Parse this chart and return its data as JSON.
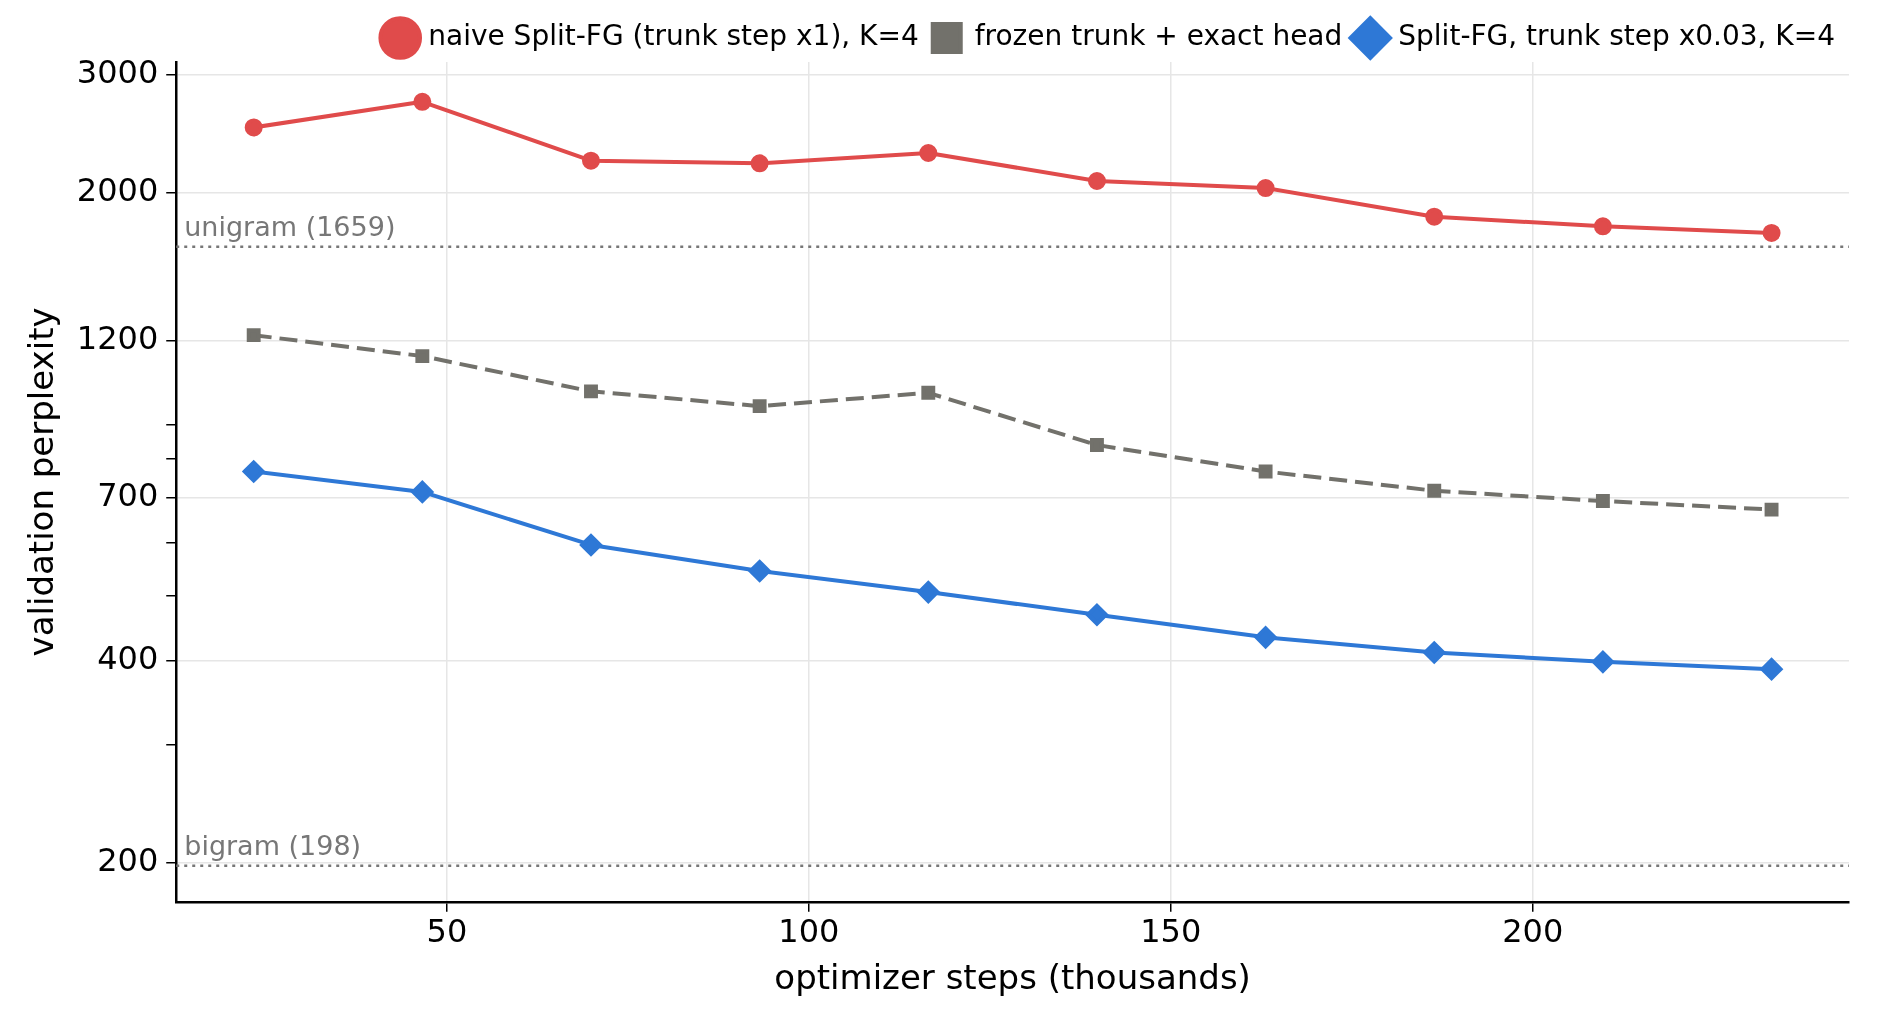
{
  "chart_data": {
    "type": "line",
    "xlabel": "optimizer steps (thousands)",
    "ylabel": "validation perplexity",
    "x": [
      23.3,
      46.6,
      69.9,
      93.2,
      116.5,
      139.8,
      163.1,
      186.4,
      209.7,
      233
    ],
    "series": [
      {
        "name": "naive Split-FG (trunk step x1), K=4",
        "color": "#e04b4b",
        "marker": "circle",
        "line_style": "solid",
        "values": [
          2500,
          2730,
          2230,
          2210,
          2290,
          2080,
          2030,
          1840,
          1780,
          1740
        ]
      },
      {
        "name": "frozen trunk + exact head",
        "color": "#72716b",
        "marker": "square",
        "line_style": "dashed",
        "values": [
          1225,
          1140,
          1010,
          960,
          1005,
          840,
          767,
          718,
          693,
          673
        ]
      },
      {
        "name": "Split-FG, trunk step x0.03, K=4",
        "color": "#2e78d6",
        "marker": "diamond",
        "line_style": "solid",
        "values": [
          767,
          715,
          596,
          545,
          507,
          469,
          434,
          412,
          399,
          389
        ]
      }
    ],
    "log": "y",
    "xlim": [
      12.6,
      243.7
    ],
    "ylim": [
      175,
      3130
    ],
    "xticks": [
      50,
      100,
      150,
      200
    ],
    "yticks": [
      200,
      {
        "value": 300,
        "label": null
      },
      400,
      {
        "value": 500,
        "label": null
      },
      {
        "value": 600,
        "label": null
      },
      700,
      {
        "value": 800,
        "label": null
      },
      {
        "value": 900,
        "label": null
      },
      1200,
      2000,
      3000
    ],
    "ref_lines": [
      {
        "axis": "y",
        "value": 1659,
        "label": "unigram (1659)",
        "color": "#777777",
        "line_style": "dotted"
      },
      {
        "axis": "y",
        "value": 198,
        "label": "bigram (198)",
        "color": "#777777",
        "line_style": "dotted"
      }
    ],
    "grid": true,
    "legend": "top right"
  }
}
